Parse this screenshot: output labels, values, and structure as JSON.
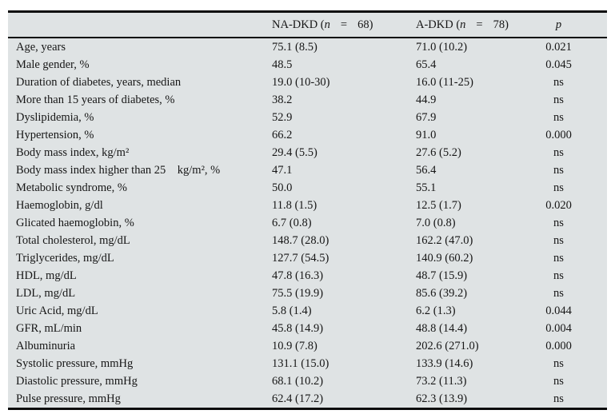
{
  "table": {
    "header": {
      "na_dkd": {
        "pre": "NA-DKD (",
        "n_symbol": "n",
        "equals": "=",
        "count": "68)"
      },
      "a_dkd": {
        "pre": "A-DKD (",
        "n_symbol": "n",
        "equals": "=",
        "count": "78)"
      },
      "p_label": "p"
    },
    "rows": [
      {
        "label": "Age, years",
        "na_dkd": "75.1 (8.5)",
        "a_dkd": "71.0 (10.2)",
        "p": "0.021"
      },
      {
        "label": "Male gender, %",
        "na_dkd": "48.5",
        "a_dkd": "65.4",
        "p": "0.045"
      },
      {
        "label": "Duration of diabetes, years, median",
        "na_dkd": "19.0 (10-30)",
        "a_dkd": "16.0 (11-25)",
        "p": "ns"
      },
      {
        "label": "More than 15 years of diabetes, %",
        "na_dkd": "38.2",
        "a_dkd": "44.9",
        "p": "ns"
      },
      {
        "label": "Dyslipidemia, %",
        "na_dkd": "52.9",
        "a_dkd": "67.9",
        "p": "ns"
      },
      {
        "label": "Hypertension, %",
        "na_dkd": "66.2",
        "a_dkd": "91.0",
        "p": "0.000"
      },
      {
        "label": "Body mass index, kg/m²",
        "na_dkd": "29.4 (5.5)",
        "a_dkd": "27.6 (5.2)",
        "p": "ns"
      },
      {
        "label": "Body mass index higher than 25    kg/m², %",
        "na_dkd": "47.1",
        "a_dkd": "56.4",
        "p": "ns"
      },
      {
        "label": "Metabolic syndrome, %",
        "na_dkd": "50.0",
        "a_dkd": "55.1",
        "p": "ns"
      },
      {
        "label": "Haemoglobin, g/dl",
        "na_dkd": "11.8 (1.5)",
        "a_dkd": "12.5 (1.7)",
        "p": "0.020"
      },
      {
        "label": "Glicated haemoglobin, %",
        "na_dkd": "6.7 (0.8)",
        "a_dkd": "7.0 (0.8)",
        "p": "ns"
      },
      {
        "label": "Total cholesterol, mg/dL",
        "na_dkd": "148.7 (28.0)",
        "a_dkd": "162.2 (47.0)",
        "p": "ns"
      },
      {
        "label": "Triglycerides, mg/dL",
        "na_dkd": "127.7 (54.5)",
        "a_dkd": "140.9 (60.2)",
        "p": "ns"
      },
      {
        "label": "HDL, mg/dL",
        "na_dkd": "47.8 (16.3)",
        "a_dkd": "48.7 (15.9)",
        "p": "ns"
      },
      {
        "label": "LDL, mg/dL",
        "na_dkd": "75.5 (19.9)",
        "a_dkd": "85.6 (39.2)",
        "p": "ns"
      },
      {
        "label": "Uric Acid, mg/dL",
        "na_dkd": "5.8 (1.4)",
        "a_dkd": "6.2 (1.3)",
        "p": "0.044"
      },
      {
        "label": "GFR, mL/min",
        "na_dkd": "45.8 (14.9)",
        "a_dkd": "48.8 (14.4)",
        "p": "0.004"
      },
      {
        "label": "Albuminuria",
        "na_dkd": "10.9 (7.8)",
        "a_dkd": "202.6 (271.0)",
        "p": "0.000"
      },
      {
        "label": "Systolic pressure, mmHg",
        "na_dkd": "131.1 (15.0)",
        "a_dkd": "133.9 (14.6)",
        "p": "ns"
      },
      {
        "label": "Diastolic pressure, mmHg",
        "na_dkd": "68.1 (10.2)",
        "a_dkd": "73.2 (11.3)",
        "p": "ns"
      },
      {
        "label": "Pulse pressure, mmHg",
        "na_dkd": "62.4 (17.2)",
        "a_dkd": "62.3 (13.9)",
        "p": "ns"
      }
    ]
  },
  "colors": {
    "table_background": "#dfe3e4",
    "rule": "#0d0d0d",
    "text": "#161616",
    "page_background": "#ffffff"
  }
}
